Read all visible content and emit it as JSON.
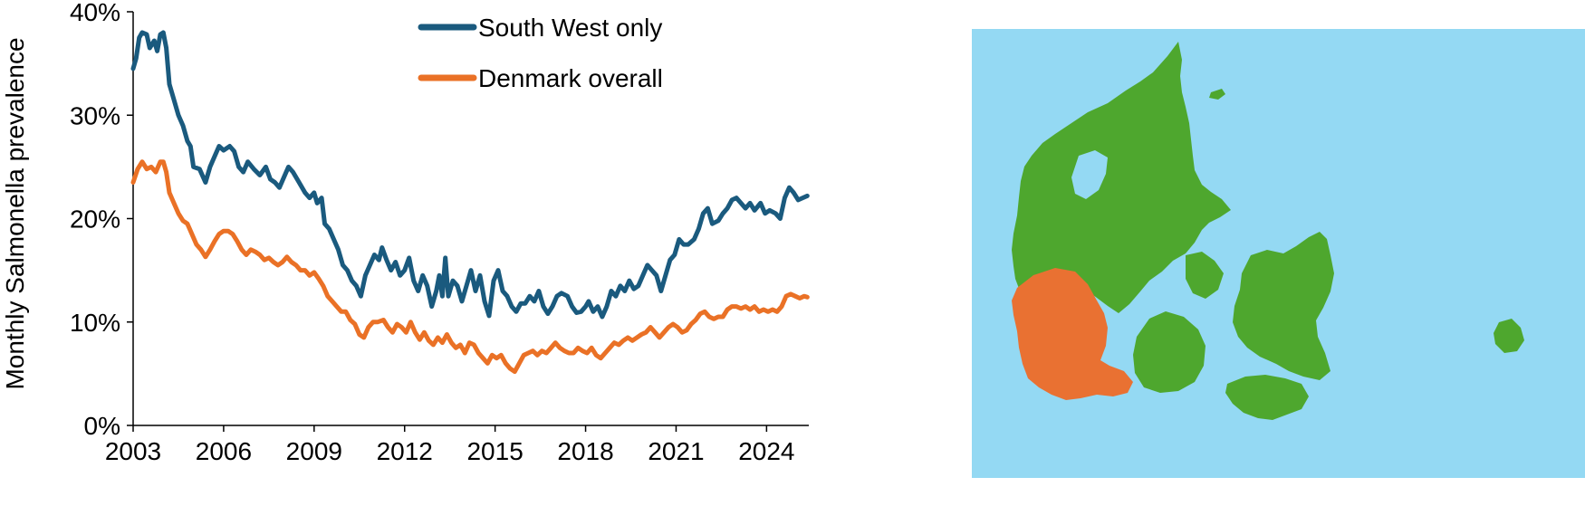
{
  "chart_data": {
    "type": "line",
    "ylabel": "Monthly Salmonella prevalence",
    "xlabel": "",
    "xlim": [
      2003,
      2025.4
    ],
    "ylim": [
      0,
      40
    ],
    "x_ticks": [
      "2003",
      "2006",
      "2009",
      "2012",
      "2015",
      "2018",
      "2021",
      "2024"
    ],
    "y_ticks": [
      "0%",
      "10%",
      "20%",
      "30%",
      "40%"
    ],
    "legend_position": "top-center",
    "grid": false,
    "series": [
      {
        "name": "South West only",
        "color": "#1a5a7e",
        "points": [
          [
            2003.0,
            34.5
          ],
          [
            2003.1,
            35.5
          ],
          [
            2003.2,
            37.5
          ],
          [
            2003.3,
            38.0
          ],
          [
            2003.45,
            37.8
          ],
          [
            2003.55,
            36.5
          ],
          [
            2003.7,
            37.2
          ],
          [
            2003.8,
            36.2
          ],
          [
            2003.9,
            37.8
          ],
          [
            2004.0,
            38.0
          ],
          [
            2004.1,
            36.5
          ],
          [
            2004.2,
            33.0
          ],
          [
            2004.35,
            31.5
          ],
          [
            2004.5,
            30.0
          ],
          [
            2004.65,
            29.0
          ],
          [
            2004.8,
            27.5
          ],
          [
            2004.9,
            27.0
          ],
          [
            2005.0,
            25.0
          ],
          [
            2005.2,
            24.8
          ],
          [
            2005.4,
            23.5
          ],
          [
            2005.55,
            25.0
          ],
          [
            2005.7,
            26.0
          ],
          [
            2005.85,
            27.0
          ],
          [
            2006.0,
            26.6
          ],
          [
            2006.2,
            27.0
          ],
          [
            2006.35,
            26.5
          ],
          [
            2006.5,
            25.0
          ],
          [
            2006.65,
            24.5
          ],
          [
            2006.8,
            25.5
          ],
          [
            2007.0,
            24.8
          ],
          [
            2007.2,
            24.2
          ],
          [
            2007.4,
            25.0
          ],
          [
            2007.55,
            23.8
          ],
          [
            2007.7,
            23.5
          ],
          [
            2007.85,
            23.0
          ],
          [
            2008.0,
            24.0
          ],
          [
            2008.15,
            25.0
          ],
          [
            2008.3,
            24.5
          ],
          [
            2008.5,
            23.5
          ],
          [
            2008.7,
            22.5
          ],
          [
            2008.85,
            22.0
          ],
          [
            2009.0,
            22.5
          ],
          [
            2009.1,
            21.5
          ],
          [
            2009.25,
            22.0
          ],
          [
            2009.35,
            19.5
          ],
          [
            2009.5,
            19.0
          ],
          [
            2009.65,
            18.0
          ],
          [
            2009.8,
            17.0
          ],
          [
            2009.95,
            15.5
          ],
          [
            2010.1,
            15.0
          ],
          [
            2010.25,
            14.0
          ],
          [
            2010.4,
            13.5
          ],
          [
            2010.55,
            12.5
          ],
          [
            2010.7,
            14.5
          ],
          [
            2010.85,
            15.5
          ],
          [
            2011.0,
            16.5
          ],
          [
            2011.15,
            16.0
          ],
          [
            2011.25,
            17.2
          ],
          [
            2011.4,
            16.0
          ],
          [
            2011.55,
            15.0
          ],
          [
            2011.7,
            15.8
          ],
          [
            2011.85,
            14.5
          ],
          [
            2012.0,
            15.0
          ],
          [
            2012.15,
            16.2
          ],
          [
            2012.3,
            14.0
          ],
          [
            2012.45,
            13.0
          ],
          [
            2012.6,
            14.5
          ],
          [
            2012.75,
            13.5
          ],
          [
            2012.9,
            11.5
          ],
          [
            2013.05,
            13.0
          ],
          [
            2013.15,
            14.5
          ],
          [
            2013.25,
            12.5
          ],
          [
            2013.35,
            16.2
          ],
          [
            2013.45,
            12.5
          ],
          [
            2013.6,
            14.0
          ],
          [
            2013.75,
            13.5
          ],
          [
            2013.9,
            12.0
          ],
          [
            2014.05,
            13.5
          ],
          [
            2014.2,
            15.0
          ],
          [
            2014.35,
            13.0
          ],
          [
            2014.5,
            14.5
          ],
          [
            2014.65,
            12.0
          ],
          [
            2014.8,
            10.6
          ],
          [
            2014.95,
            14.0
          ],
          [
            2015.1,
            15.0
          ],
          [
            2015.25,
            13.0
          ],
          [
            2015.4,
            12.5
          ],
          [
            2015.55,
            11.5
          ],
          [
            2015.7,
            11.0
          ],
          [
            2015.85,
            11.8
          ],
          [
            2016.0,
            11.8
          ],
          [
            2016.15,
            12.5
          ],
          [
            2016.3,
            12.0
          ],
          [
            2016.45,
            13.0
          ],
          [
            2016.6,
            11.5
          ],
          [
            2016.75,
            10.8
          ],
          [
            2016.9,
            11.5
          ],
          [
            2017.05,
            12.5
          ],
          [
            2017.2,
            12.8
          ],
          [
            2017.4,
            12.5
          ],
          [
            2017.55,
            11.5
          ],
          [
            2017.7,
            10.9
          ],
          [
            2017.85,
            11.0
          ],
          [
            2018.0,
            11.5
          ],
          [
            2018.1,
            12.0
          ],
          [
            2018.25,
            11.0
          ],
          [
            2018.4,
            11.5
          ],
          [
            2018.55,
            10.5
          ],
          [
            2018.7,
            11.5
          ],
          [
            2018.85,
            13.0
          ],
          [
            2019.0,
            12.5
          ],
          [
            2019.15,
            13.5
          ],
          [
            2019.3,
            13.0
          ],
          [
            2019.45,
            14.0
          ],
          [
            2019.6,
            13.2
          ],
          [
            2019.75,
            13.5
          ],
          [
            2019.9,
            14.5
          ],
          [
            2020.05,
            15.5
          ],
          [
            2020.2,
            15.0
          ],
          [
            2020.35,
            14.5
          ],
          [
            2020.5,
            13.0
          ],
          [
            2020.65,
            14.5
          ],
          [
            2020.8,
            16.0
          ],
          [
            2020.95,
            16.5
          ],
          [
            2021.1,
            18.0
          ],
          [
            2021.25,
            17.5
          ],
          [
            2021.4,
            17.5
          ],
          [
            2021.6,
            18.0
          ],
          [
            2021.75,
            19.0
          ],
          [
            2021.9,
            20.5
          ],
          [
            2022.05,
            21.0
          ],
          [
            2022.2,
            19.5
          ],
          [
            2022.4,
            19.8
          ],
          [
            2022.55,
            20.5
          ],
          [
            2022.7,
            21.0
          ],
          [
            2022.85,
            21.8
          ],
          [
            2023.0,
            22.0
          ],
          [
            2023.15,
            21.5
          ],
          [
            2023.3,
            21.0
          ],
          [
            2023.45,
            21.5
          ],
          [
            2023.6,
            20.8
          ],
          [
            2023.8,
            21.5
          ],
          [
            2023.95,
            20.5
          ],
          [
            2024.1,
            20.8
          ],
          [
            2024.3,
            20.5
          ],
          [
            2024.45,
            20.0
          ],
          [
            2024.6,
            22.0
          ],
          [
            2024.75,
            23.0
          ],
          [
            2024.9,
            22.5
          ],
          [
            2025.05,
            21.8
          ],
          [
            2025.2,
            22.0
          ],
          [
            2025.35,
            22.2
          ]
        ]
      },
      {
        "name": "Denmark overall",
        "color": "#ea7126",
        "points": [
          [
            2003.0,
            23.5
          ],
          [
            2003.15,
            24.8
          ],
          [
            2003.3,
            25.5
          ],
          [
            2003.45,
            24.8
          ],
          [
            2003.6,
            25.0
          ],
          [
            2003.75,
            24.5
          ],
          [
            2003.9,
            25.5
          ],
          [
            2004.0,
            25.5
          ],
          [
            2004.1,
            24.5
          ],
          [
            2004.2,
            22.5
          ],
          [
            2004.35,
            21.5
          ],
          [
            2004.5,
            20.5
          ],
          [
            2004.65,
            19.8
          ],
          [
            2004.8,
            19.5
          ],
          [
            2004.95,
            18.5
          ],
          [
            2005.1,
            17.5
          ],
          [
            2005.25,
            17.0
          ],
          [
            2005.4,
            16.3
          ],
          [
            2005.55,
            17.0
          ],
          [
            2005.7,
            17.8
          ],
          [
            2005.85,
            18.5
          ],
          [
            2006.0,
            18.8
          ],
          [
            2006.15,
            18.8
          ],
          [
            2006.3,
            18.5
          ],
          [
            2006.45,
            17.8
          ],
          [
            2006.6,
            17.0
          ],
          [
            2006.75,
            16.5
          ],
          [
            2006.9,
            17.0
          ],
          [
            2007.05,
            16.8
          ],
          [
            2007.2,
            16.5
          ],
          [
            2007.35,
            16.0
          ],
          [
            2007.5,
            16.2
          ],
          [
            2007.65,
            15.8
          ],
          [
            2007.8,
            15.5
          ],
          [
            2007.95,
            15.8
          ],
          [
            2008.1,
            16.3
          ],
          [
            2008.25,
            15.8
          ],
          [
            2008.4,
            15.5
          ],
          [
            2008.55,
            15.0
          ],
          [
            2008.7,
            15.0
          ],
          [
            2008.85,
            14.5
          ],
          [
            2009.0,
            14.8
          ],
          [
            2009.15,
            14.2
          ],
          [
            2009.3,
            13.5
          ],
          [
            2009.45,
            12.5
          ],
          [
            2009.6,
            12.0
          ],
          [
            2009.75,
            11.5
          ],
          [
            2009.9,
            11.0
          ],
          [
            2010.05,
            11.0
          ],
          [
            2010.2,
            10.2
          ],
          [
            2010.35,
            9.8
          ],
          [
            2010.5,
            8.8
          ],
          [
            2010.65,
            8.5
          ],
          [
            2010.8,
            9.5
          ],
          [
            2010.95,
            10.0
          ],
          [
            2011.1,
            10.0
          ],
          [
            2011.3,
            10.2
          ],
          [
            2011.45,
            9.5
          ],
          [
            2011.6,
            9.0
          ],
          [
            2011.75,
            9.8
          ],
          [
            2011.9,
            9.5
          ],
          [
            2012.05,
            9.0
          ],
          [
            2012.2,
            10.0
          ],
          [
            2012.35,
            9.0
          ],
          [
            2012.5,
            8.3
          ],
          [
            2012.65,
            9.0
          ],
          [
            2012.8,
            8.2
          ],
          [
            2012.95,
            7.8
          ],
          [
            2013.1,
            8.5
          ],
          [
            2013.25,
            8.0
          ],
          [
            2013.4,
            8.8
          ],
          [
            2013.55,
            8.0
          ],
          [
            2013.7,
            7.5
          ],
          [
            2013.85,
            7.8
          ],
          [
            2014.0,
            7.0
          ],
          [
            2014.15,
            8.0
          ],
          [
            2014.3,
            7.8
          ],
          [
            2014.45,
            7.0
          ],
          [
            2014.6,
            6.5
          ],
          [
            2014.75,
            6.0
          ],
          [
            2014.9,
            6.8
          ],
          [
            2015.05,
            6.5
          ],
          [
            2015.2,
            6.8
          ],
          [
            2015.35,
            6.0
          ],
          [
            2015.5,
            5.5
          ],
          [
            2015.65,
            5.2
          ],
          [
            2015.8,
            6.0
          ],
          [
            2015.95,
            6.8
          ],
          [
            2016.1,
            7.0
          ],
          [
            2016.25,
            7.2
          ],
          [
            2016.4,
            6.8
          ],
          [
            2016.55,
            7.2
          ],
          [
            2016.7,
            7.0
          ],
          [
            2016.85,
            7.5
          ],
          [
            2017.0,
            8.0
          ],
          [
            2017.15,
            7.5
          ],
          [
            2017.3,
            7.2
          ],
          [
            2017.45,
            7.0
          ],
          [
            2017.6,
            7.0
          ],
          [
            2017.75,
            7.5
          ],
          [
            2017.9,
            7.2
          ],
          [
            2018.05,
            7.0
          ],
          [
            2018.2,
            7.5
          ],
          [
            2018.35,
            6.8
          ],
          [
            2018.5,
            6.5
          ],
          [
            2018.65,
            7.0
          ],
          [
            2018.8,
            7.5
          ],
          [
            2018.95,
            8.0
          ],
          [
            2019.1,
            7.8
          ],
          [
            2019.25,
            8.2
          ],
          [
            2019.4,
            8.5
          ],
          [
            2019.55,
            8.2
          ],
          [
            2019.7,
            8.5
          ],
          [
            2019.85,
            8.8
          ],
          [
            2020.0,
            9.0
          ],
          [
            2020.15,
            9.5
          ],
          [
            2020.3,
            9.0
          ],
          [
            2020.45,
            8.5
          ],
          [
            2020.6,
            9.0
          ],
          [
            2020.75,
            9.5
          ],
          [
            2020.9,
            9.8
          ],
          [
            2021.05,
            9.5
          ],
          [
            2021.2,
            9.0
          ],
          [
            2021.35,
            9.2
          ],
          [
            2021.5,
            9.8
          ],
          [
            2021.65,
            10.2
          ],
          [
            2021.8,
            10.8
          ],
          [
            2021.95,
            11.0
          ],
          [
            2022.1,
            10.5
          ],
          [
            2022.25,
            10.3
          ],
          [
            2022.4,
            10.5
          ],
          [
            2022.55,
            10.5
          ],
          [
            2022.7,
            11.2
          ],
          [
            2022.85,
            11.5
          ],
          [
            2023.0,
            11.5
          ],
          [
            2023.15,
            11.3
          ],
          [
            2023.3,
            11.5
          ],
          [
            2023.45,
            11.2
          ],
          [
            2023.6,
            11.5
          ],
          [
            2023.75,
            11.0
          ],
          [
            2023.9,
            11.2
          ],
          [
            2024.05,
            11.0
          ],
          [
            2024.2,
            11.2
          ],
          [
            2024.35,
            11.0
          ],
          [
            2024.5,
            11.5
          ],
          [
            2024.65,
            12.5
          ],
          [
            2024.8,
            12.7
          ],
          [
            2024.95,
            12.5
          ],
          [
            2025.1,
            12.3
          ],
          [
            2025.25,
            12.5
          ],
          [
            2025.35,
            12.4
          ]
        ]
      }
    ]
  },
  "map": {
    "sea_color": "#94d9f3",
    "land_color": "#4ea72e",
    "highlight_color": "#e97132"
  }
}
